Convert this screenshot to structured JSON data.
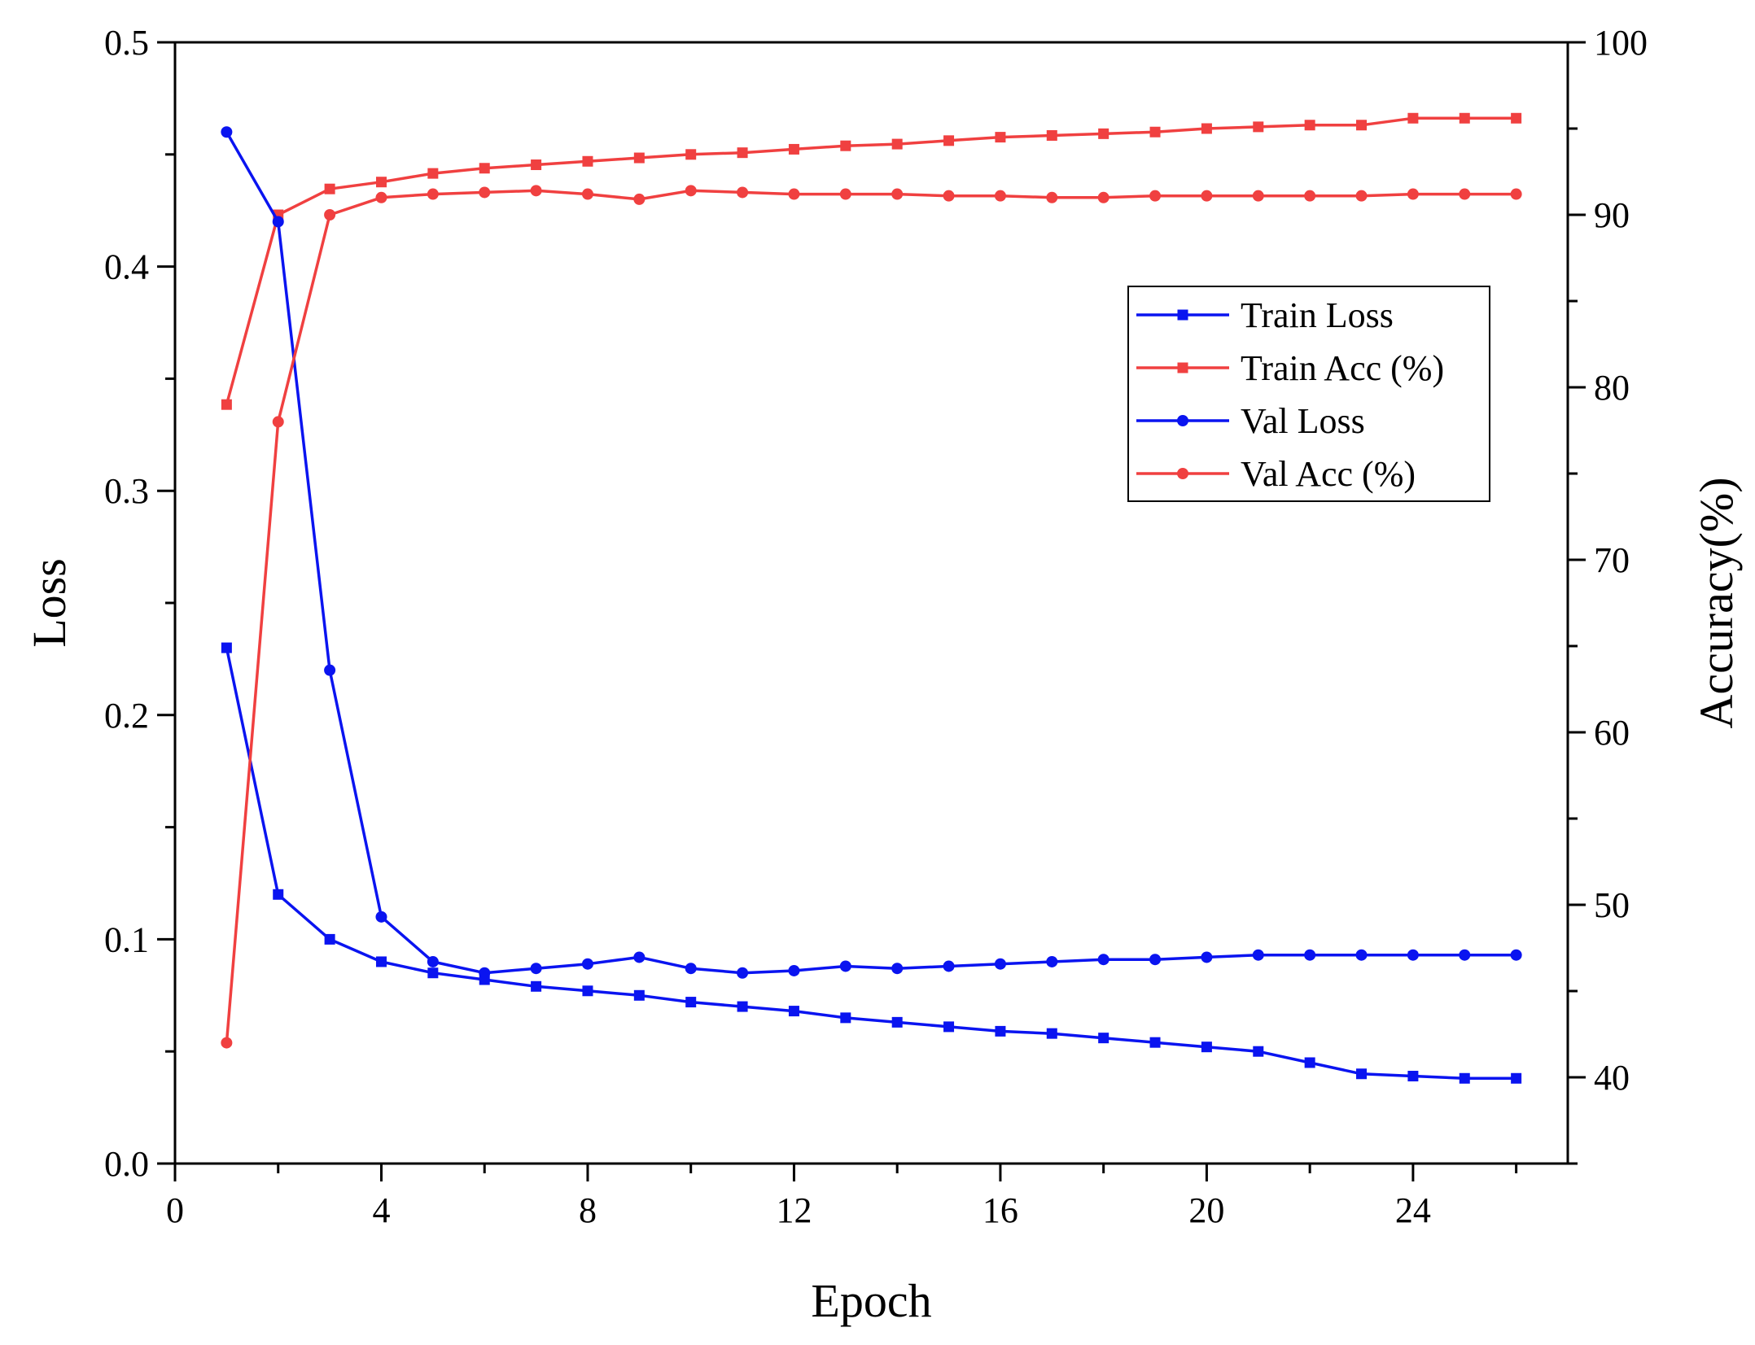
{
  "chart_data": {
    "type": "line",
    "xlabel": "Epoch",
    "ylabel_left": "Loss",
    "ylabel_right": "Accuracy(%)",
    "xlim": [
      0,
      27
    ],
    "ylim_left": [
      0,
      0.5
    ],
    "ylim_right": [
      35,
      100
    ],
    "x_ticks": [
      0,
      4,
      8,
      12,
      16,
      20,
      24
    ],
    "x_tick_labels": [
      "0",
      "4",
      "8",
      "12",
      "16",
      "20",
      "24"
    ],
    "y_left_ticks": [
      0,
      0.1,
      0.2,
      0.3,
      0.4,
      0.5
    ],
    "y_left_tick_labels": [
      "0.0",
      "0.1",
      "0.2",
      "0.3",
      "0.4",
      "0.5"
    ],
    "y_right_ticks": [
      40,
      50,
      60,
      70,
      80,
      90,
      100
    ],
    "y_right_tick_labels": [
      "40",
      "50",
      "60",
      "70",
      "80",
      "90",
      "100"
    ],
    "legend_position": "upper-right-inside",
    "x": [
      1,
      2,
      3,
      4,
      5,
      6,
      7,
      8,
      9,
      10,
      11,
      12,
      13,
      14,
      15,
      16,
      17,
      18,
      19,
      20,
      21,
      22,
      23,
      24,
      25,
      26
    ],
    "series": [
      {
        "name": "Train Loss",
        "axis": "left",
        "color": "#0a14f0",
        "marker": "square",
        "values": [
          0.23,
          0.12,
          0.1,
          0.09,
          0.085,
          0.082,
          0.079,
          0.077,
          0.075,
          0.072,
          0.07,
          0.068,
          0.065,
          0.063,
          0.061,
          0.059,
          0.058,
          0.056,
          0.054,
          0.052,
          0.05,
          0.045,
          0.04,
          0.039,
          0.038,
          0.038
        ]
      },
      {
        "name": "Train Acc (%)",
        "axis": "right",
        "color": "#f04040",
        "marker": "square",
        "values": [
          79.0,
          90.0,
          91.5,
          91.9,
          92.4,
          92.7,
          92.9,
          93.1,
          93.3,
          93.5,
          93.6,
          93.8,
          94.0,
          94.1,
          94.3,
          94.5,
          94.6,
          94.7,
          94.8,
          95.0,
          95.1,
          95.2,
          95.2,
          95.6,
          95.6,
          95.6
        ]
      },
      {
        "name": "Val Loss",
        "axis": "left",
        "color": "#0a14f0",
        "marker": "circle",
        "values": [
          0.46,
          0.42,
          0.22,
          0.11,
          0.09,
          0.085,
          0.087,
          0.089,
          0.092,
          0.087,
          0.085,
          0.086,
          0.088,
          0.087,
          0.088,
          0.089,
          0.09,
          0.091,
          0.091,
          0.092,
          0.093,
          0.093,
          0.093,
          0.093,
          0.093,
          0.093
        ]
      },
      {
        "name": "Val Acc (%)",
        "axis": "right",
        "color": "#f04040",
        "marker": "circle",
        "values": [
          42.0,
          78.0,
          90.0,
          91.0,
          91.2,
          91.3,
          91.4,
          91.2,
          90.9,
          91.4,
          91.3,
          91.2,
          91.2,
          91.2,
          91.1,
          91.1,
          91.0,
          91.0,
          91.1,
          91.1,
          91.1,
          91.1,
          91.1,
          91.2,
          91.2,
          91.2
        ]
      }
    ]
  }
}
